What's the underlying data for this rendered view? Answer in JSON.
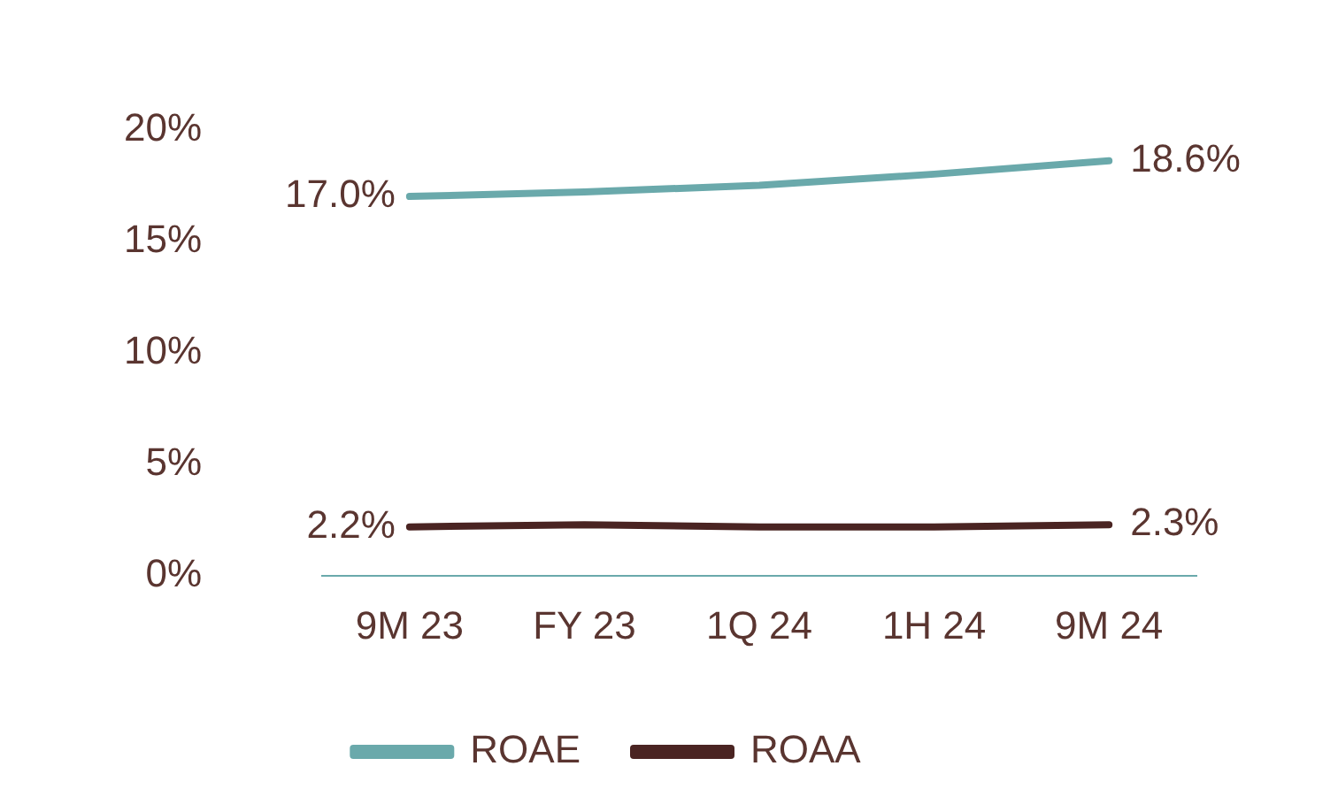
{
  "chart_data": {
    "type": "line",
    "categories": [
      "9M 23",
      "FY 23",
      "1Q 24",
      "1H 24",
      "9M 24"
    ],
    "series": [
      {
        "name": "ROAE",
        "color": "#6aa9ab",
        "values": [
          17.0,
          17.2,
          17.5,
          18.0,
          18.6
        ],
        "value_labels": [
          "17.0%",
          null,
          null,
          null,
          "18.6%"
        ]
      },
      {
        "name": "ROAA",
        "color": "#4a2422",
        "values": [
          2.2,
          2.3,
          2.2,
          2.2,
          2.3
        ],
        "value_labels": [
          "2.2%",
          null,
          null,
          null,
          "2.3%"
        ]
      }
    ],
    "ylim": [
      0,
      20
    ],
    "yticks": [
      {
        "value": 0,
        "label": "0%"
      },
      {
        "value": 5,
        "label": "5%"
      },
      {
        "value": 10,
        "label": "10%"
      },
      {
        "value": 15,
        "label": "15%"
      },
      {
        "value": 20,
        "label": "20%"
      }
    ],
    "grid": false,
    "legend": "bottom",
    "marker": "none",
    "line_style": "solid"
  }
}
